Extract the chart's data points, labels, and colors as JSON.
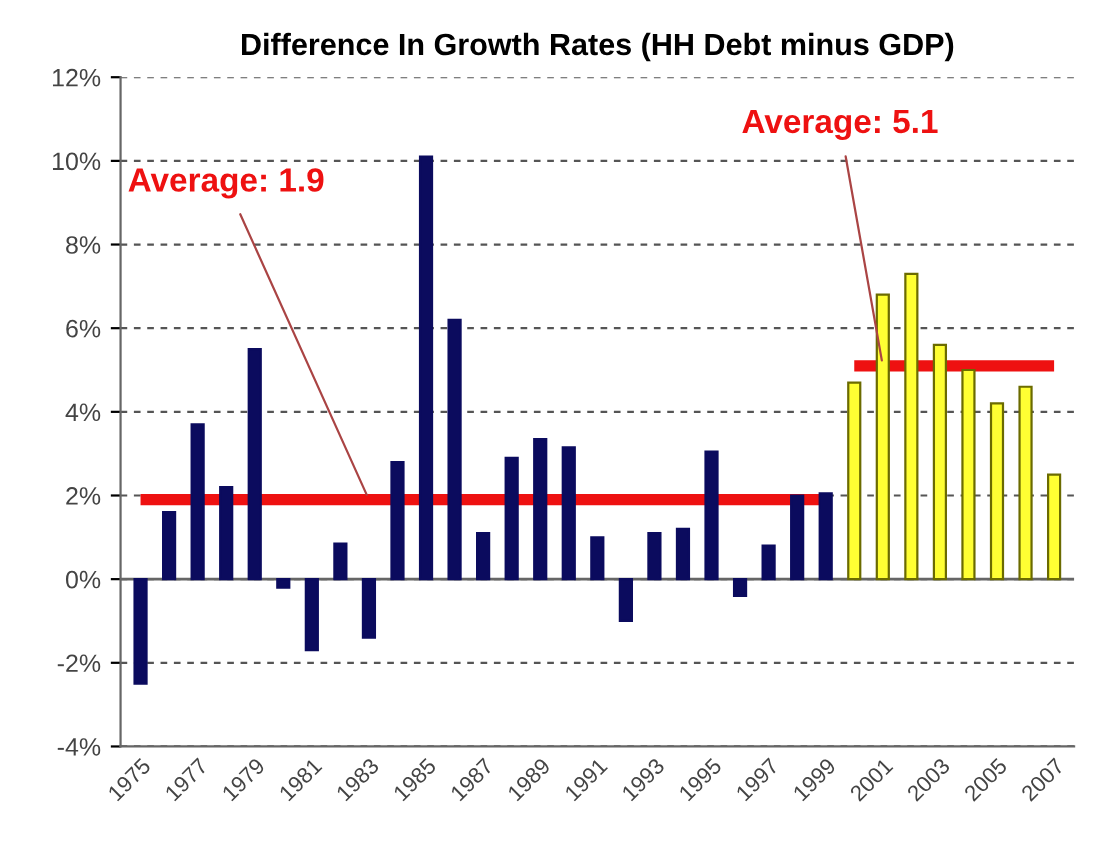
{
  "chart_data": {
    "type": "bar",
    "title": "Difference In Growth Rates (HH Debt minus GDP)",
    "categories": [
      "1975",
      null,
      "1977",
      null,
      "1979",
      null,
      "1981",
      null,
      "1983",
      null,
      "1985",
      null,
      "1987",
      null,
      "1989",
      null,
      "1991",
      null,
      "1993",
      null,
      "1995",
      null,
      "1997",
      null,
      "1999",
      null,
      "2001",
      null,
      "2003",
      null,
      "2005",
      null,
      "2007"
    ],
    "series": [
      {
        "values": [
          -2.5,
          1.6,
          3.7,
          2.2,
          5.5,
          -0.2,
          -1.7,
          0.85,
          -1.4,
          2.8,
          10.1,
          6.2,
          1.1,
          2.9,
          3.35,
          3.15,
          1.0,
          -1.0,
          1.1,
          1.2,
          3.05,
          -0.4,
          0.8,
          2.0,
          2.05,
          4.7,
          6.8,
          7.3,
          5.6,
          5.0,
          4.2,
          4.6,
          2.5
        ],
        "colors": [
          "#0b0b5e",
          "#0b0b5e",
          "#0b0b5e",
          "#0b0b5e",
          "#0b0b5e",
          "#0b0b5e",
          "#0b0b5e",
          "#0b0b5e",
          "#0b0b5e",
          "#0b0b5e",
          "#0b0b5e",
          "#0b0b5e",
          "#0b0b5e",
          "#0b0b5e",
          "#0b0b5e",
          "#0b0b5e",
          "#0b0b5e",
          "#0b0b5e",
          "#0b0b5e",
          "#0b0b5e",
          "#0b0b5e",
          "#0b0b5e",
          "#0b0b5e",
          "#0b0b5e",
          "#0b0b5e",
          "#ffff33",
          "#ffff33",
          "#ffff33",
          "#ffff33",
          "#ffff33",
          "#ffff33",
          "#ffff33",
          "#ffff33"
        ]
      },
      {
        "type": "line",
        "color": "#ee1111",
        "values": [
          1.9,
          1.9,
          1.9,
          1.9,
          1.9,
          1.9,
          1.9,
          1.9,
          1.9,
          1.9,
          1.9,
          1.9,
          1.9,
          1.9,
          1.9,
          1.9,
          1.9,
          1.9,
          1.9,
          1.9,
          1.9,
          1.9,
          1.9,
          1.9,
          1.9,
          null,
          null,
          null,
          null,
          null,
          null,
          null,
          null
        ]
      },
      {
        "type": "line",
        "color": "#ee1111",
        "values": [
          null,
          null,
          null,
          null,
          null,
          null,
          null,
          null,
          null,
          null,
          null,
          null,
          null,
          null,
          null,
          null,
          null,
          null,
          null,
          null,
          null,
          null,
          null,
          null,
          null,
          5.1,
          5.1,
          5.1,
          5.1,
          5.1,
          5.1,
          5.1,
          5.1
        ]
      }
    ],
    "ylim": [
      -4,
      12
    ],
    "yticks": [
      {
        "value": -4,
        "label": "-4%"
      },
      {
        "value": -2,
        "label": "-2%"
      },
      {
        "value": 0,
        "label": "0%"
      },
      {
        "value": 2,
        "label": "2%"
      },
      {
        "value": 4,
        "label": "4%"
      },
      {
        "value": 6,
        "label": "6%"
      },
      {
        "value": 8,
        "label": "8%"
      },
      {
        "value": 10,
        "label": "10%"
      },
      {
        "value": 12,
        "label": "12%"
      }
    ],
    "grid": "y",
    "legend": false,
    "annotations": [
      {
        "text": "Average: 1.9",
        "x": "1983",
        "y": 1.9
      },
      {
        "text": "Average: 5.1",
        "x": "2001",
        "y": 5.1
      }
    ]
  }
}
